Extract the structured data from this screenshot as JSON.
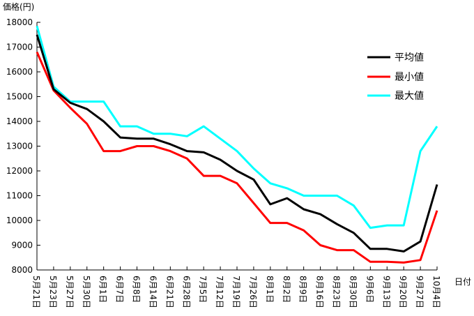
{
  "chart_data": {
    "type": "line",
    "ylabel": "価格(円)",
    "xlabel": "日付",
    "ylim": [
      8000,
      18000
    ],
    "yticks": [
      "8000",
      "9000",
      "10000",
      "11000",
      "12000",
      "13000",
      "14000",
      "15000",
      "16000",
      "17000",
      "18000"
    ],
    "categories": [
      "5月21日",
      "5月23日",
      "5月27日",
      "5月30日",
      "6月1日",
      "6月7日",
      "6月8日",
      "6月14日",
      "6月21日",
      "6月28日",
      "7月5日",
      "7月12日",
      "7月19日",
      "7月26日",
      "8月1日",
      "8月2日",
      "8月9日",
      "8月16日",
      "8月23日",
      "8月30日",
      "9月6日",
      "9月13日",
      "9月20日",
      "9月27日",
      "10月4日"
    ],
    "legend_position": "top-right",
    "grid": false,
    "series": [
      {
        "name": "平均値",
        "color": "#000000",
        "values": [
          17500,
          15300,
          14750,
          14500,
          14000,
          13350,
          13300,
          13300,
          13080,
          12800,
          12750,
          12450,
          12000,
          11650,
          10650,
          10900,
          10450,
          10250,
          9850,
          9500,
          8850,
          8850,
          8750,
          9150,
          11450
        ]
      },
      {
        "name": "最小値",
        "color": "#ff0000",
        "values": [
          16800,
          15250,
          14550,
          13900,
          12800,
          12800,
          13000,
          13000,
          12800,
          12500,
          11800,
          11800,
          11500,
          10700,
          9900,
          9900,
          9600,
          9000,
          8800,
          8800,
          8330,
          8330,
          8300,
          8400,
          10400
        ]
      },
      {
        "name": "最大値",
        "color": "#00ffff",
        "values": [
          17850,
          15400,
          14800,
          14800,
          14800,
          13800,
          13800,
          13500,
          13500,
          13400,
          13800,
          13300,
          12800,
          12100,
          11500,
          11300,
          11000,
          11000,
          11000,
          10600,
          9700,
          9800,
          9800,
          12800,
          13800
        ]
      }
    ]
  }
}
